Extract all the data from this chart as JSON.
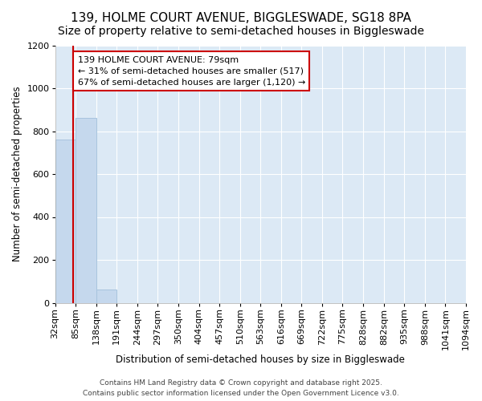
{
  "title": "139, HOLME COURT AVENUE, BIGGLESWADE, SG18 8PA",
  "subtitle": "Size of property relative to semi-detached houses in Biggleswade",
  "xlabel": "Distribution of semi-detached houses by size in Biggleswade",
  "ylabel": "Number of semi-detached properties",
  "bins": [
    32,
    85,
    138,
    191,
    244,
    297,
    350,
    404,
    457,
    510,
    563,
    616,
    669,
    722,
    775,
    828,
    882,
    935,
    988,
    1041,
    1094
  ],
  "bin_labels": [
    "32sqm",
    "85sqm",
    "138sqm",
    "191sqm",
    "244sqm",
    "297sqm",
    "350sqm",
    "404sqm",
    "457sqm",
    "510sqm",
    "563sqm",
    "616sqm",
    "669sqm",
    "722sqm",
    "775sqm",
    "828sqm",
    "882sqm",
    "935sqm",
    "988sqm",
    "1041sqm",
    "1094sqm"
  ],
  "counts": [
    760,
    860,
    60,
    0,
    0,
    0,
    0,
    0,
    0,
    0,
    0,
    0,
    0,
    0,
    0,
    0,
    0,
    0,
    0,
    0
  ],
  "bar_color": "#c5d8ed",
  "bar_edgecolor": "#a8c4de",
  "property_size": 79,
  "property_line_color": "#cc0000",
  "ylim": [
    0,
    1200
  ],
  "yticks": [
    0,
    200,
    400,
    600,
    800,
    1000,
    1200
  ],
  "annotation_title": "139 HOLME COURT AVENUE: 79sqm",
  "annotation_line1": "← 31% of semi-detached houses are smaller (517)",
  "annotation_line2": "67% of semi-detached houses are larger (1,120) →",
  "annotation_box_color": "#cc0000",
  "footer_line1": "Contains HM Land Registry data © Crown copyright and database right 2025.",
  "footer_line2": "Contains public sector information licensed under the Open Government Licence v3.0.",
  "fig_background": "#ffffff",
  "plot_background": "#dce9f5",
  "grid_color": "#ffffff",
  "title_fontsize": 11,
  "subtitle_fontsize": 10,
  "label_fontsize": 8.5,
  "tick_fontsize": 8,
  "footer_fontsize": 6.5,
  "annotation_fontsize": 8
}
